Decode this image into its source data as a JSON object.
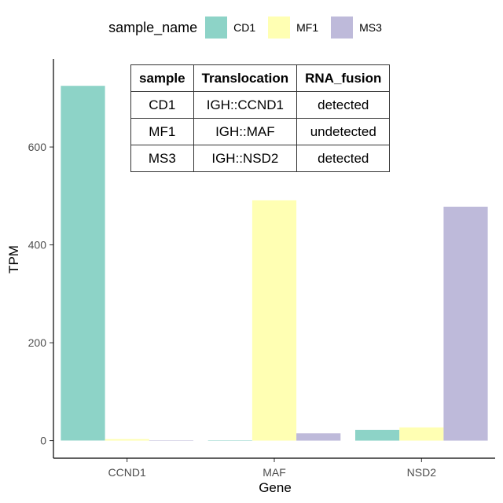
{
  "chart_data": {
    "type": "bar",
    "categories": [
      "CCND1",
      "MAF",
      "NSD2"
    ],
    "series": [
      {
        "name": "CD1",
        "values": [
          725,
          0.5,
          22
        ],
        "color": "#8dd3c7"
      },
      {
        "name": "MF1",
        "values": [
          3,
          491,
          27
        ],
        "color": "#ffffb3"
      },
      {
        "name": "MS3",
        "values": [
          0.5,
          15,
          478
        ],
        "color": "#bebada"
      }
    ],
    "xlabel": "Gene",
    "ylabel": "TPM",
    "ylim": [
      -36,
      780
    ],
    "yticks": [
      0,
      200,
      400,
      600
    ],
    "legend": {
      "title": "sample_name",
      "position": "top"
    },
    "grid": false
  },
  "table": {
    "headers": [
      "sample",
      "Translocation",
      "RNA_fusion"
    ],
    "rows": [
      [
        "CD1",
        "IGH::CCND1",
        "detected"
      ],
      [
        "MF1",
        "IGH::MAF",
        "undetected"
      ],
      [
        "MS3",
        "IGH::NSD2",
        "detected"
      ]
    ]
  }
}
